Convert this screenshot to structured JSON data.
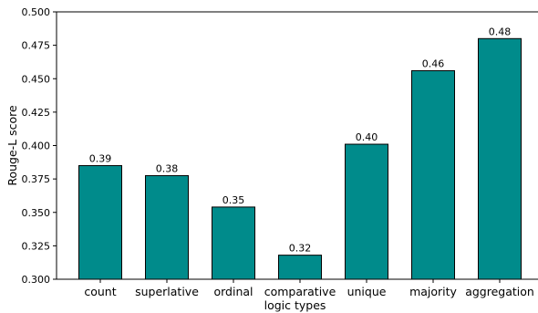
{
  "chart_data": {
    "type": "bar",
    "categories": [
      "count",
      "superlative",
      "ordinal",
      "comparative",
      "unique",
      "majority",
      "aggregation"
    ],
    "values": [
      0.385,
      0.3775,
      0.354,
      0.318,
      0.401,
      0.456,
      0.48
    ],
    "data_labels": [
      "0.39",
      "0.38",
      "0.35",
      "0.32",
      "0.40",
      "0.46",
      "0.48"
    ],
    "xlabel": "logic types",
    "ylabel": "Rouge-L score",
    "ylim": [
      0.3,
      0.5
    ],
    "yticks": [
      "0.300",
      "0.325",
      "0.350",
      "0.375",
      "0.400",
      "0.425",
      "0.450",
      "0.475",
      "0.500"
    ],
    "bar_color": "#008b8b",
    "edge_color": "#000000",
    "grid": false,
    "legend": "none"
  }
}
